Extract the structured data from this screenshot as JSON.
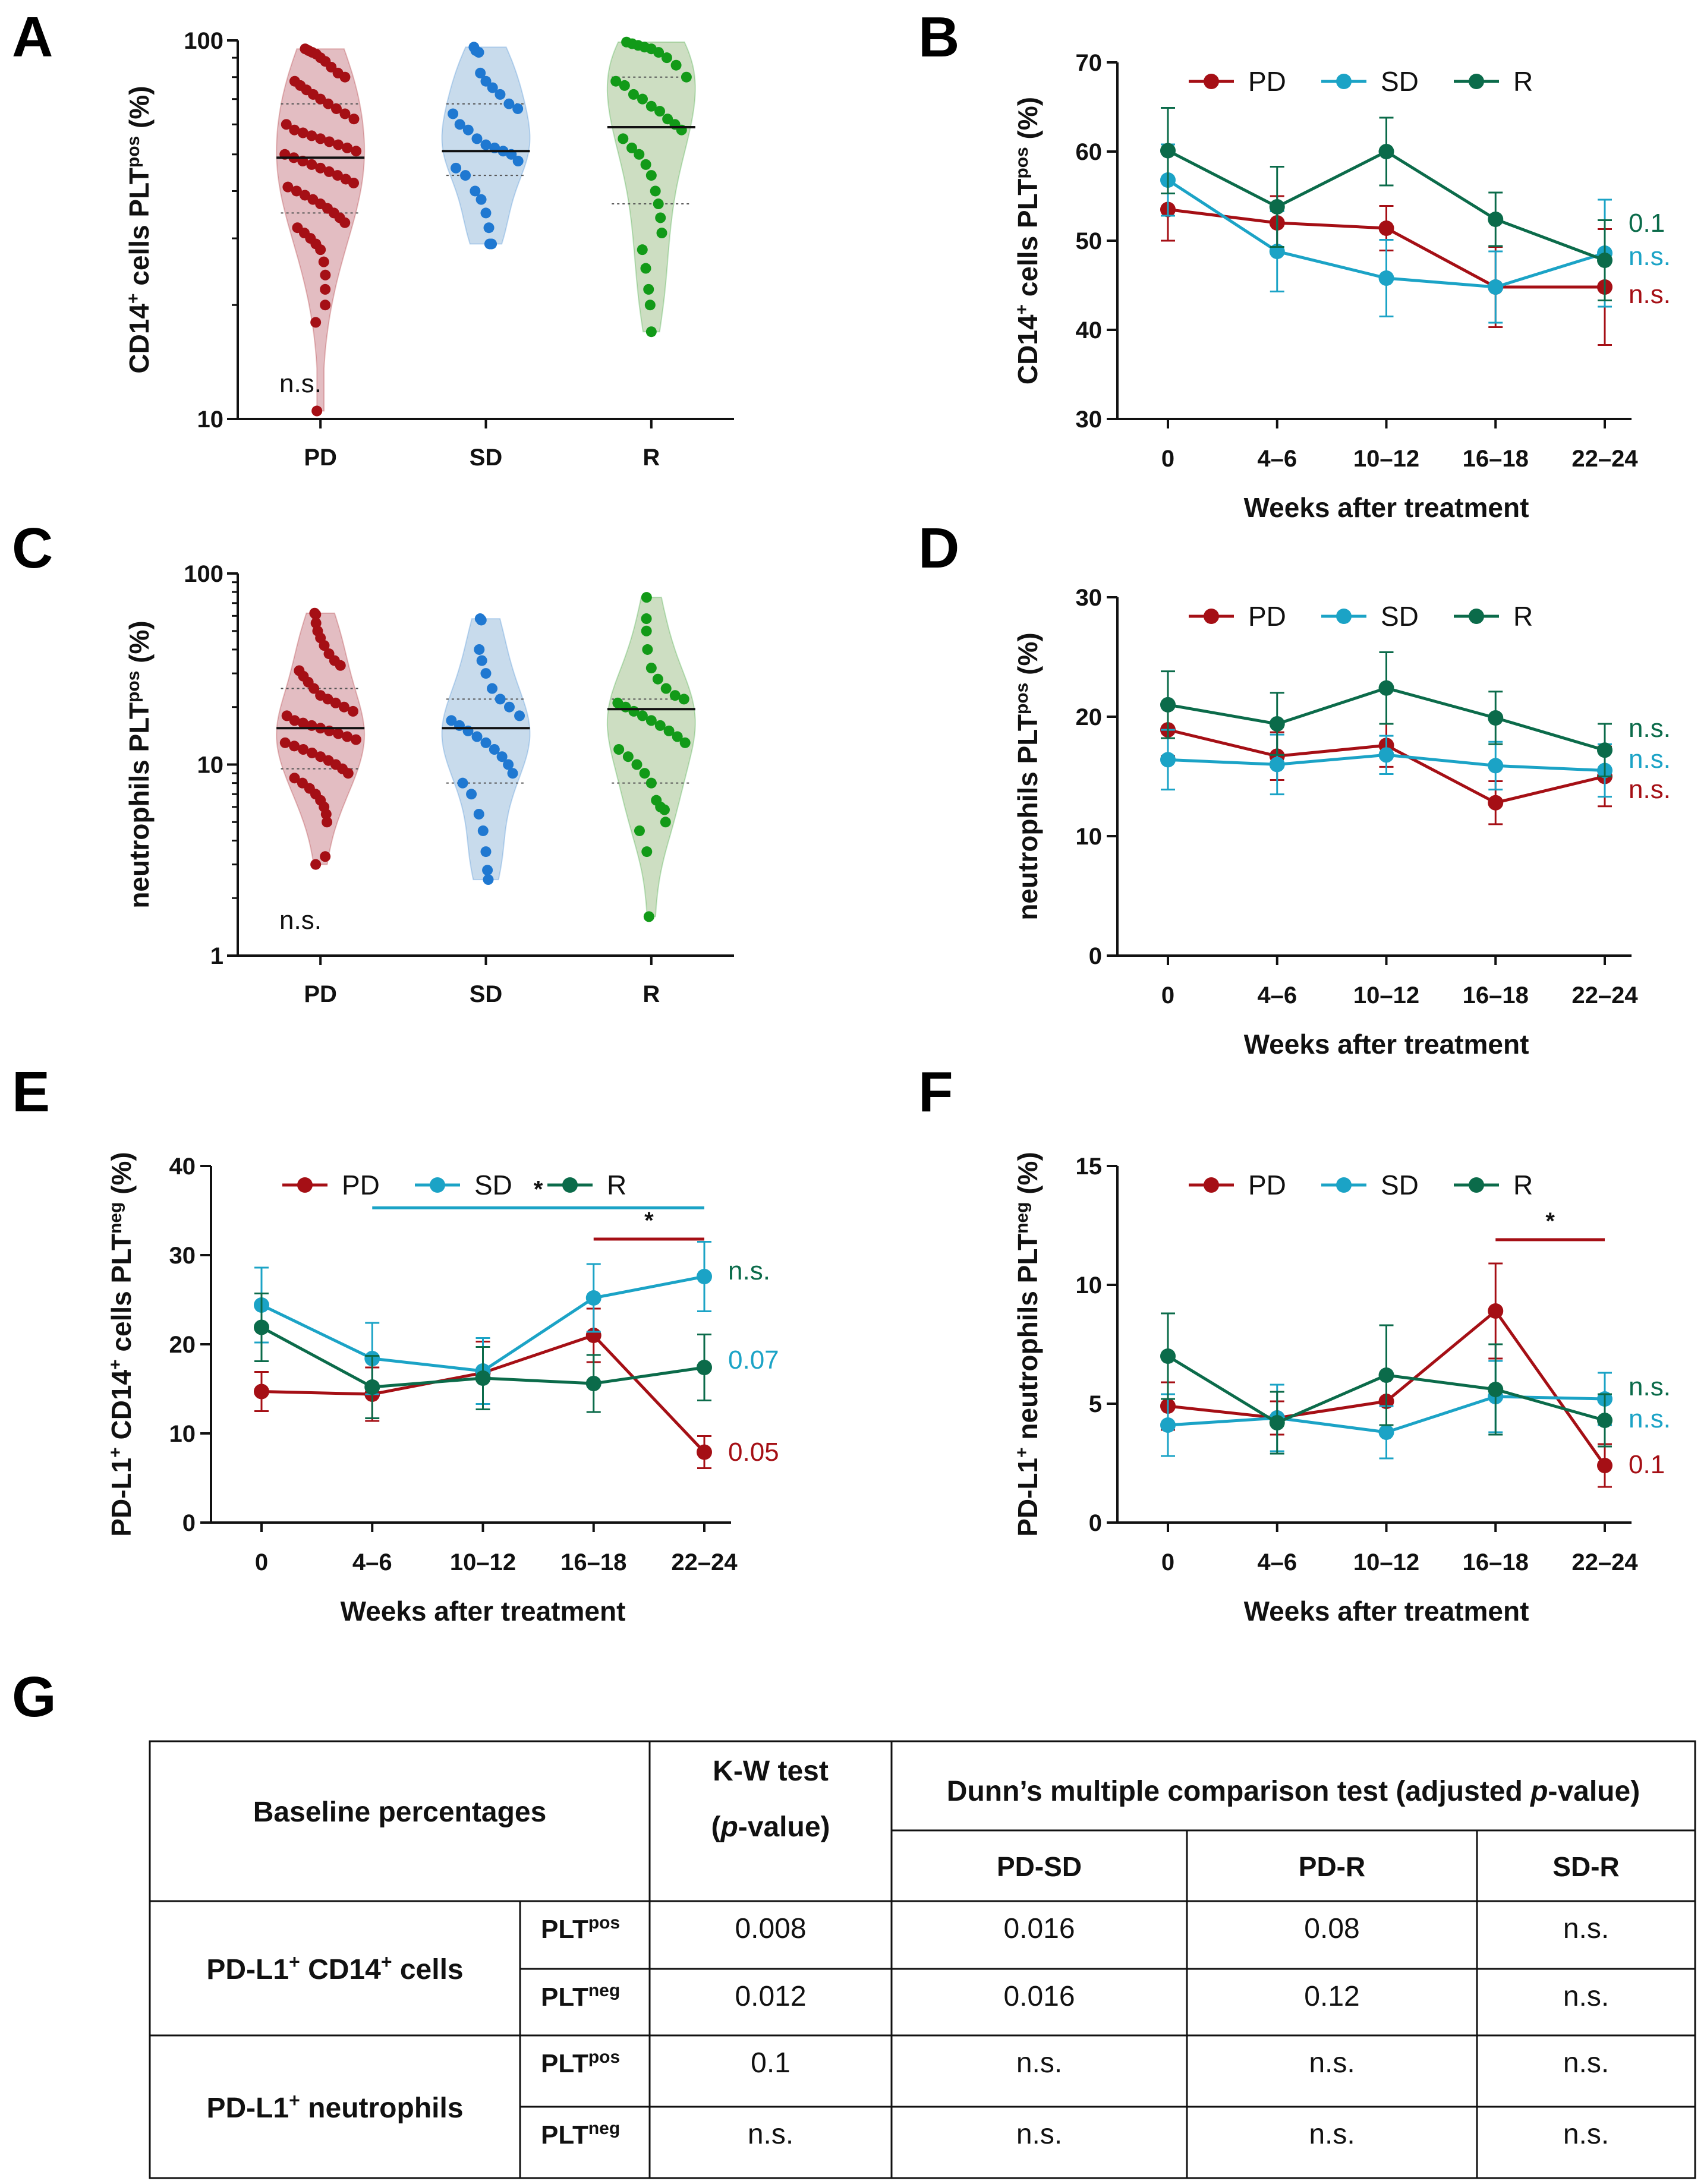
{
  "colors": {
    "PD": "#a50f15",
    "SD": "#1ba3c6",
    "R": "#0b6b4a",
    "PD_dot": "#a50f15",
    "SD_dot": "#1f78d1",
    "R_dot": "#129a18",
    "PD_fill": "#d9a7ae",
    "SD_fill": "#b6cfe6",
    "R_fill": "#bcd3ae"
  },
  "chart_data": [
    {
      "panel": "A",
      "type": "violin",
      "ylabel": "CD14+ cells PLTpos (%)",
      "ylabel_parts": [
        "CD14",
        "+",
        " cells PLT",
        "pos",
        " (%)"
      ],
      "yscale": "log",
      "ylim": [
        10,
        100
      ],
      "yticks": [
        "10",
        "100"
      ],
      "categories": [
        "PD",
        "SD",
        "R"
      ],
      "medians": [
        49,
        51,
        59
      ],
      "annotation": "n.s.",
      "points": {
        "PD": [
          95,
          94,
          93,
          92,
          90,
          88,
          85,
          82,
          80,
          78,
          76,
          74,
          72,
          70,
          68,
          66,
          64,
          62,
          60,
          58,
          57,
          56,
          55,
          54,
          53,
          52,
          51,
          50,
          49,
          48,
          47,
          46,
          45,
          44,
          43,
          42,
          41,
          40,
          39,
          38,
          37,
          36,
          35,
          34,
          33,
          32,
          31,
          30,
          29,
          28,
          26,
          24,
          22,
          20,
          18,
          10.5
        ],
        "SD": [
          96,
          94,
          93,
          82,
          78,
          75,
          72,
          68,
          66,
          64,
          60,
          58,
          55,
          53,
          52,
          51,
          50,
          48,
          46,
          44,
          40,
          38,
          35,
          32,
          29,
          29
        ],
        "R": [
          99,
          98,
          97,
          96,
          95,
          93,
          90,
          86,
          80,
          78,
          76,
          72,
          70,
          67,
          65,
          62,
          60,
          58,
          55,
          52,
          50,
          47,
          44,
          40,
          37,
          34,
          31,
          28,
          25,
          22,
          20,
          17
        ]
      }
    },
    {
      "panel": "B",
      "type": "line",
      "ylabel": "CD14+ cells PLTpos (%)",
      "ylabel_parts": [
        "CD14",
        "+",
        " cells PLT",
        "pos",
        " (%)"
      ],
      "xlabel": "Weeks after treatment",
      "categories": [
        "0",
        "4–6",
        "10–12",
        "16–18",
        "22–24"
      ],
      "ylim": [
        30,
        70
      ],
      "yticks": [
        "30",
        "40",
        "50",
        "60",
        "70"
      ],
      "series": [
        {
          "name": "PD",
          "values": [
            53.5,
            52,
            51.4,
            44.8,
            44.8
          ],
          "err": [
            3.5,
            3,
            2.5,
            4.5,
            6.5
          ],
          "label": "n.s."
        },
        {
          "name": "SD",
          "values": [
            56.8,
            48.8,
            45.8,
            44.8,
            48.6
          ],
          "err": [
            4,
            4.5,
            4.3,
            4,
            6
          ],
          "label": "n.s."
        },
        {
          "name": "R",
          "values": [
            60.1,
            53.8,
            60,
            52.4,
            47.8
          ],
          "err": [
            4.8,
            4.5,
            3.8,
            3,
            4.5
          ],
          "label": "0.1"
        }
      ],
      "legend": [
        "PD",
        "SD",
        "R"
      ]
    },
    {
      "panel": "C",
      "type": "violin",
      "ylabel": "neutrophils PLTpos (%)",
      "ylabel_parts": [
        "neutrophils PLT",
        "pos",
        " (%)"
      ],
      "yscale": "log",
      "ylim": [
        1,
        100
      ],
      "yticks": [
        "1",
        "10",
        "100"
      ],
      "categories": [
        "PD",
        "SD",
        "R"
      ],
      "medians": [
        15.5,
        15.5,
        19.5
      ],
      "annotation": "n.s.",
      "points": {
        "PD": [
          62,
          61,
          55,
          50,
          46,
          42,
          38,
          35,
          33,
          31,
          29,
          27,
          25,
          23,
          22,
          21,
          20,
          19,
          18,
          17,
          16.5,
          16,
          15.5,
          15,
          14.5,
          14,
          13.5,
          13,
          12.5,
          12,
          11.5,
          11,
          10.5,
          10,
          9.5,
          9,
          8.5,
          8,
          7.5,
          7,
          6.5,
          6,
          5.5,
          5,
          3.3,
          3.0
        ],
        "SD": [
          58,
          57,
          40,
          35,
          30,
          25,
          22,
          20,
          18,
          17,
          16,
          15,
          14,
          13,
          12,
          11,
          10,
          9,
          8,
          7,
          5.5,
          4.5,
          3.5,
          2.8,
          2.5
        ],
        "R": [
          75,
          58,
          50,
          40,
          32,
          28,
          25,
          23,
          22,
          21,
          20,
          19,
          18,
          17,
          16,
          15,
          14,
          13,
          12,
          11,
          10,
          9,
          8,
          6.5,
          6,
          5.8,
          5,
          4.5,
          3.5,
          1.6
        ]
      }
    },
    {
      "panel": "D",
      "type": "line",
      "ylabel": "neutrophils PLTpos (%)",
      "ylabel_parts": [
        "neutrophils PLT",
        "pos",
        " (%)"
      ],
      "xlabel": "Weeks after treatment",
      "categories": [
        "0",
        "4–6",
        "10–12",
        "16–18",
        "22–24"
      ],
      "ylim": [
        0,
        30
      ],
      "yticks": [
        "0",
        "10",
        "20",
        "30"
      ],
      "series": [
        {
          "name": "PD",
          "values": [
            18.9,
            16.7,
            17.6,
            12.8,
            15
          ],
          "err": [
            2.2,
            2,
            1.8,
            1.8,
            2.5
          ],
          "label": "n.s."
        },
        {
          "name": "SD",
          "values": [
            16.4,
            16,
            16.8,
            15.9,
            15.5
          ],
          "err": [
            2.5,
            2.5,
            1.6,
            2,
            2.2
          ],
          "label": "n.s."
        },
        {
          "name": "R",
          "values": [
            21,
            19.4,
            22.4,
            19.9,
            17.2
          ],
          "err": [
            2.8,
            2.6,
            3,
            2.2,
            2.2
          ],
          "label": "n.s."
        }
      ],
      "legend": [
        "PD",
        "SD",
        "R"
      ]
    },
    {
      "panel": "E",
      "type": "line",
      "ylabel": "PD-L1+ CD14+ cells PLTneg (%)",
      "ylabel_parts": [
        "PD-L1",
        "+",
        " CD14",
        "+",
        " cells PLT",
        "neg",
        " (%)"
      ],
      "xlabel": "Weeks after treatment",
      "categories": [
        "0",
        "4–6",
        "10–12",
        "16–18",
        "22–24"
      ],
      "ylim": [
        0,
        40
      ],
      "yticks": [
        "0",
        "10",
        "20",
        "30",
        "40"
      ],
      "series": [
        {
          "name": "PD",
          "values": [
            14.7,
            14.4,
            16.8,
            21,
            7.9
          ],
          "err": [
            2.2,
            3,
            3.5,
            3,
            1.8
          ],
          "label": "0.05"
        },
        {
          "name": "SD",
          "values": [
            24.4,
            18.4,
            17,
            25.2,
            27.6
          ],
          "err": [
            4.2,
            4,
            3.7,
            3.8,
            3.9
          ],
          "label": "0.07"
        },
        {
          "name": "R",
          "values": [
            21.9,
            15.2,
            16.2,
            15.6,
            17.4
          ],
          "err": [
            3.8,
            3.5,
            3.5,
            3.2,
            3.7
          ],
          "label": "n.s."
        }
      ],
      "significance": [
        {
          "from": "4–6",
          "to": "22–24",
          "series": "SD",
          "y": 35.3,
          "mark": "*"
        },
        {
          "from": "16–18",
          "to": "22–24",
          "series": "PD",
          "y": 31.8,
          "mark": "*"
        }
      ],
      "legend": [
        "PD",
        "SD",
        "R"
      ]
    },
    {
      "panel": "F",
      "type": "line",
      "ylabel": "PD-L1+ neutrophils PLTneg (%)",
      "ylabel_parts": [
        "PD-L1",
        "+",
        " neutrophils PLT",
        "neg",
        " (%)"
      ],
      "xlabel": "Weeks after treatment",
      "categories": [
        "0",
        "4–6",
        "10–12",
        "16–18",
        "22–24"
      ],
      "ylim": [
        0,
        15
      ],
      "yticks": [
        "0",
        "5",
        "10",
        "15"
      ],
      "series": [
        {
          "name": "PD",
          "values": [
            4.9,
            4.4,
            5.1,
            8.9,
            2.4
          ],
          "err": [
            1,
            0.7,
            1,
            2,
            0.9
          ],
          "label": "0.1"
        },
        {
          "name": "SD",
          "values": [
            4.1,
            4.4,
            3.8,
            5.3,
            5.2
          ],
          "err": [
            1.3,
            1.4,
            1.1,
            1.5,
            1.1
          ],
          "label": "n.s."
        },
        {
          "name": "R",
          "values": [
            7,
            4.2,
            6.2,
            5.6,
            4.3
          ],
          "err": [
            1.8,
            1.3,
            2.1,
            1.9,
            1.1
          ],
          "label": "n.s."
        }
      ],
      "significance": [
        {
          "from": "16–18",
          "to": "22–24",
          "series": "PD",
          "y": 11.9,
          "mark": "*"
        }
      ],
      "legend": [
        "PD",
        "SD",
        "R"
      ]
    },
    {
      "panel": "G",
      "type": "table",
      "headers": {
        "col1": "Baseline percentages",
        "kw_line1": "K-W test",
        "kw_line2_open": "(",
        "kw_line2_p": "p",
        "kw_line2_close": "-value)",
        "dunn_before": "Dunn’s multiple comparison test (adjusted ",
        "dunn_p": "p",
        "dunn_after": "-value)",
        "sub": [
          "PD-SD",
          "PD-R",
          "SD-R"
        ]
      },
      "groups": [
        {
          "name_parts": [
            "PD-L1",
            "+",
            " CD14",
            "+",
            " cells"
          ],
          "name": "PD-L1+ CD14+ cells",
          "rows": [
            {
              "plt": "PLT",
              "sup": "pos",
              "kw": "0.008",
              "pd_sd": "0.016",
              "pd_r": "0.08",
              "sd_r": "n.s."
            },
            {
              "plt": "PLT",
              "sup": "neg",
              "kw": "0.012",
              "pd_sd": "0.016",
              "pd_r": "0.12",
              "sd_r": "n.s."
            }
          ]
        },
        {
          "name_parts": [
            "PD-L1",
            "+",
            " neutrophils"
          ],
          "name": "PD-L1+ neutrophils",
          "rows": [
            {
              "plt": "PLT",
              "sup": "pos",
              "kw": "0.1",
              "pd_sd": "n.s.",
              "pd_r": "n.s.",
              "sd_r": "n.s."
            },
            {
              "plt": "PLT",
              "sup": "neg",
              "kw": "n.s.",
              "pd_sd": "n.s.",
              "pd_r": "n.s.",
              "sd_r": "n.s."
            }
          ]
        }
      ]
    }
  ]
}
